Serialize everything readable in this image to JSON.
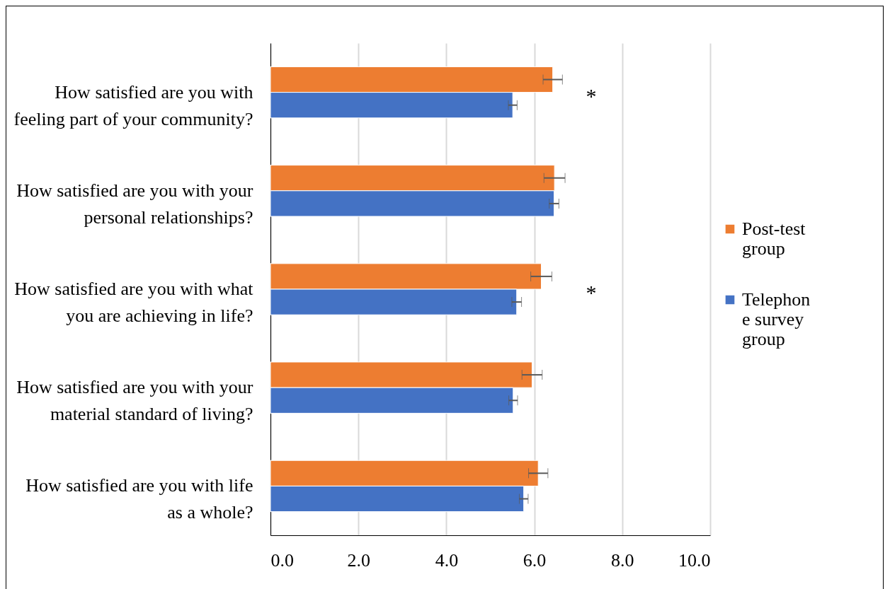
{
  "chart_data": {
    "type": "bar",
    "orientation": "horizontal",
    "categories": [
      "How satisfied are you with feeling part of your community?",
      "How satisfied are you with your personal relationships?",
      "How satisfied are you with what you are achieving in life?",
      "How satisfied are you with your material standard of living?",
      "How satisfied are you with life as a whole?"
    ],
    "series": [
      {
        "name": "Post-test group",
        "color": "#ed7d31",
        "values": [
          6.42,
          6.46,
          6.16,
          5.95,
          6.09
        ],
        "errors": [
          0.22,
          0.24,
          0.24,
          0.23,
          0.22
        ]
      },
      {
        "name": "Telephone survey group",
        "color": "#4472c4",
        "values": [
          5.51,
          6.45,
          5.6,
          5.52,
          5.76
        ],
        "errors": [
          0.1,
          0.11,
          0.11,
          0.1,
          0.1
        ]
      }
    ],
    "xlim": [
      0,
      10
    ],
    "xticks": [
      {
        "value": 0,
        "label": "0.0"
      },
      {
        "value": 2,
        "label": "2.0"
      },
      {
        "value": 4,
        "label": "4.0"
      },
      {
        "value": 6,
        "label": "6.0"
      },
      {
        "value": 8,
        "label": "8.0"
      },
      {
        "value": 10,
        "label": "10.0"
      }
    ],
    "grid": "x",
    "legend": "right",
    "annotations": [
      "*",
      "*"
    ]
  }
}
